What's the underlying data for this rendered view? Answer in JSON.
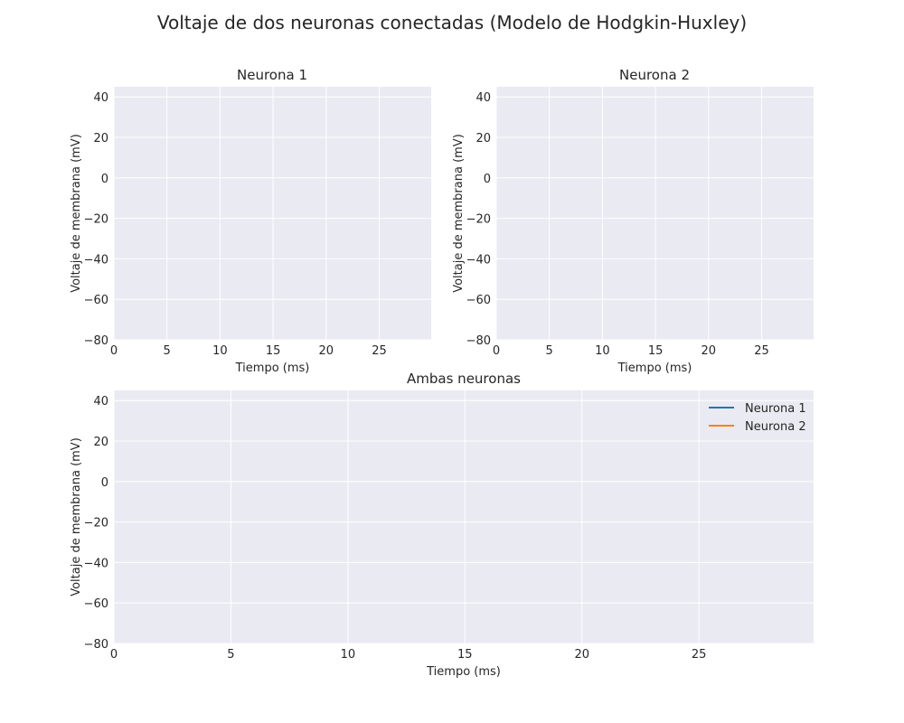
{
  "figure": {
    "title": "Voltaje de dos neuronas conectadas (Modelo de Hodgkin-Huxley)"
  },
  "chart_data": [
    {
      "type": "line",
      "id": "neurona-1",
      "title": "Neurona 1",
      "xlabel": "Tiempo (ms)",
      "ylabel": "Voltaje de membrana (mV)",
      "xlim": [
        0,
        29.9
      ],
      "ylim": [
        -80,
        45
      ],
      "xticks": [
        0,
        5,
        10,
        15,
        20,
        25
      ],
      "yticks": [
        -80,
        -60,
        -40,
        -20,
        0,
        20,
        40
      ],
      "grid": true,
      "series": []
    },
    {
      "type": "line",
      "id": "neurona-2",
      "title": "Neurona 2",
      "xlabel": "Tiempo (ms)",
      "ylabel": "Voltaje de membrana (mV)",
      "xlim": [
        0,
        29.9
      ],
      "ylim": [
        -80,
        45
      ],
      "xticks": [
        0,
        5,
        10,
        15,
        20,
        25
      ],
      "yticks": [
        -80,
        -60,
        -40,
        -20,
        0,
        20,
        40
      ],
      "grid": true,
      "series": []
    },
    {
      "type": "line",
      "id": "ambas-neuronas",
      "title": "Ambas neuronas",
      "xlabel": "Tiempo (ms)",
      "ylabel": "Voltaje de membrana (mV)",
      "xlim": [
        0,
        29.9
      ],
      "ylim": [
        -80,
        45
      ],
      "xticks": [
        0,
        5,
        10,
        15,
        20,
        25
      ],
      "yticks": [
        -80,
        -60,
        -40,
        -20,
        0,
        20,
        40
      ],
      "grid": true,
      "legend": "top-right",
      "series": [
        {
          "name": "Neurona 1",
          "color": "#1f77b4",
          "x": [],
          "y": []
        },
        {
          "name": "Neurona 2",
          "color": "#ff7f0e",
          "x": [],
          "y": []
        }
      ]
    }
  ]
}
